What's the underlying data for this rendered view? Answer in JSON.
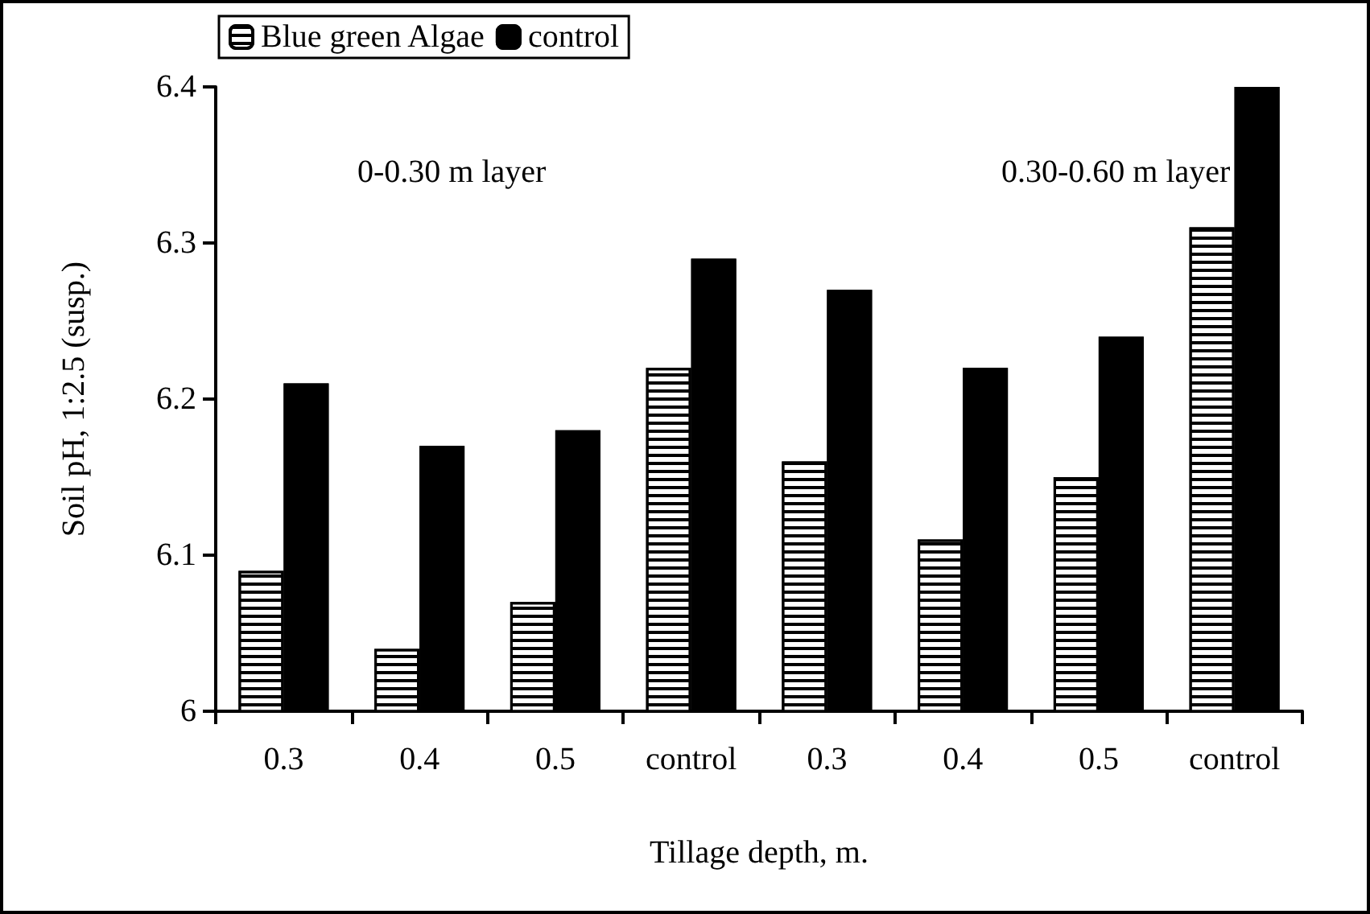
{
  "chart_data": {
    "type": "bar",
    "xlabel": "Tillage depth, m.",
    "ylabel": "Soil pH, 1:2.5 (susp.)",
    "categories": [
      "0.3",
      "0.4",
      "0.5",
      "control",
      "0.3",
      "0.4",
      "0.5",
      "control"
    ],
    "series": [
      {
        "name": "Blue green Algae",
        "color": "#ffffff",
        "values": [
          6.09,
          6.04,
          6.07,
          6.22,
          6.16,
          6.11,
          6.15,
          6.31
        ]
      },
      {
        "name": "control",
        "color": "#000000",
        "values": [
          6.21,
          6.17,
          6.18,
          6.29,
          6.27,
          6.22,
          6.24,
          6.4
        ]
      }
    ],
    "annotations": [
      "0-0.30 m layer",
      "0.30-0.60 m layer"
    ],
    "ylim": [
      6,
      6.4
    ],
    "yticks": [
      6,
      6.1,
      6.2,
      6.3,
      6.4
    ],
    "grid": false,
    "legend": "top left"
  }
}
